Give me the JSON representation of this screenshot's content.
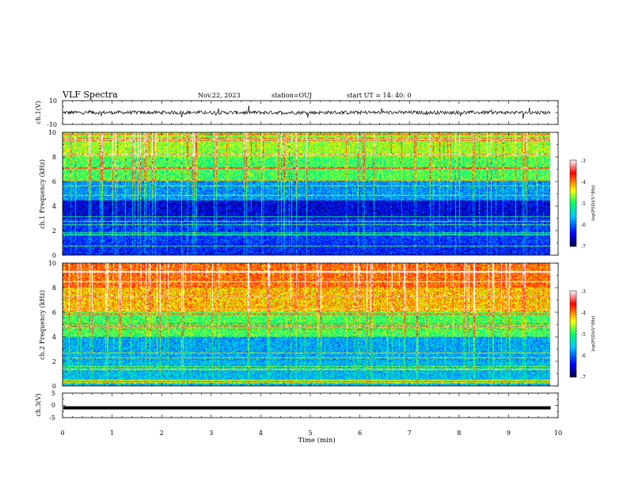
{
  "header": {
    "title": "VLF Spectra",
    "date": "Nov.22, 2023",
    "station": "station=OUJ",
    "start_ut": "start  UT =   14: 40: 0"
  },
  "colors": {
    "spectrogram_scale": [
      "#000046",
      "#0000ff",
      "#00c8ff",
      "#00ff64",
      "#ffff00",
      "#ff0000",
      "#ffffff"
    ],
    "waveform": "#000000"
  },
  "chart_data": [
    {
      "type": "line",
      "name": "ch1-waveform",
      "ylabel": "ch.1(V)",
      "ylim": [
        -10,
        10
      ],
      "yticks": [
        "10",
        "-10"
      ],
      "xlim": [
        0,
        10
      ],
      "baseline": 0,
      "amplitude": 1.5
    },
    {
      "type": "heatmap",
      "name": "ch1-spectrogram",
      "ylabel": "ch.1 Frequency (kHz)",
      "ylim": [
        0,
        10
      ],
      "yticks": [
        "0",
        "2",
        "4",
        "6",
        "8",
        "10"
      ],
      "xlim": [
        0,
        10
      ],
      "data_end_min": 9.85,
      "colorbar": {
        "label": "log(PSD)(V²/Hz)",
        "ticks": [
          "-3",
          "-4",
          "-5",
          "-6",
          "-7"
        ],
        "range": [
          -7,
          -3
        ]
      },
      "level_by_band_khz": [
        [
          0,
          1,
          -6.3
        ],
        [
          1,
          3,
          -6.2
        ],
        [
          3,
          4.5,
          -6.5
        ],
        [
          4.5,
          6,
          -5.8
        ],
        [
          6,
          8,
          -4.9
        ],
        [
          8,
          10,
          -4.6
        ]
      ]
    },
    {
      "type": "heatmap",
      "name": "ch2-spectrogram",
      "ylabel": "ch.2 Frequency (kHz)",
      "ylim": [
        0,
        10
      ],
      "yticks": [
        "0",
        "2",
        "4",
        "6",
        "8",
        "10"
      ],
      "xlim": [
        0,
        10
      ],
      "data_end_min": 9.85,
      "colorbar": {
        "label": "log(PSD)(V²/Hz)",
        "ticks": [
          "-3",
          "-4",
          "-5",
          "-6",
          "-7"
        ],
        "range": [
          -7,
          -3
        ]
      },
      "level_by_band_khz": [
        [
          0,
          2,
          -5.6
        ],
        [
          2,
          4,
          -5.7
        ],
        [
          4,
          6,
          -4.9
        ],
        [
          6,
          8,
          -4.2
        ],
        [
          8,
          10,
          -3.9
        ]
      ]
    },
    {
      "type": "line",
      "name": "ch3-waveform",
      "ylabel": "ch.3(V)",
      "ylim": [
        -5,
        5
      ],
      "yticks": [
        "5",
        "0",
        "-5"
      ],
      "xlim": [
        0,
        10
      ],
      "baseline": -1,
      "xlabel": "Time (min)",
      "xticks": [
        "0",
        "1",
        "2",
        "3",
        "4",
        "5",
        "6",
        "7",
        "8",
        "9",
        "10"
      ]
    }
  ]
}
